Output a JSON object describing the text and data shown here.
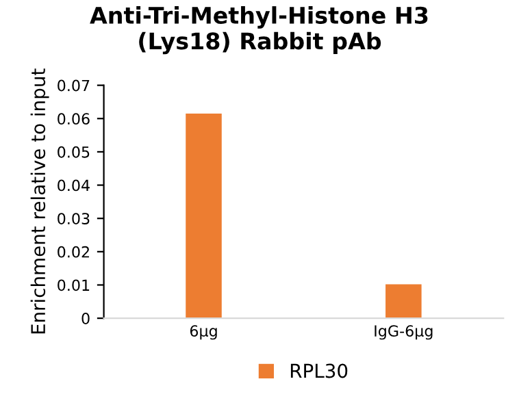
{
  "chart_data": {
    "type": "bar",
    "title": "Anti-Tri-Methyl-Histone H3\n(Lys18) Rabbit pAb",
    "ylabel": "Enrichment relative to input",
    "categories": [
      "6μg",
      "IgG-6μg"
    ],
    "series": [
      {
        "name": "RPL30",
        "color": "#ed7d31",
        "values": [
          0.0615,
          0.0102
        ]
      }
    ],
    "ylim": [
      0,
      0.07
    ],
    "yticks": [
      {
        "value": 0,
        "label": "0"
      },
      0.01,
      0.02,
      0.03,
      0.04,
      0.05,
      0.06,
      0.07
    ],
    "grid": false,
    "legend": "bottom"
  }
}
